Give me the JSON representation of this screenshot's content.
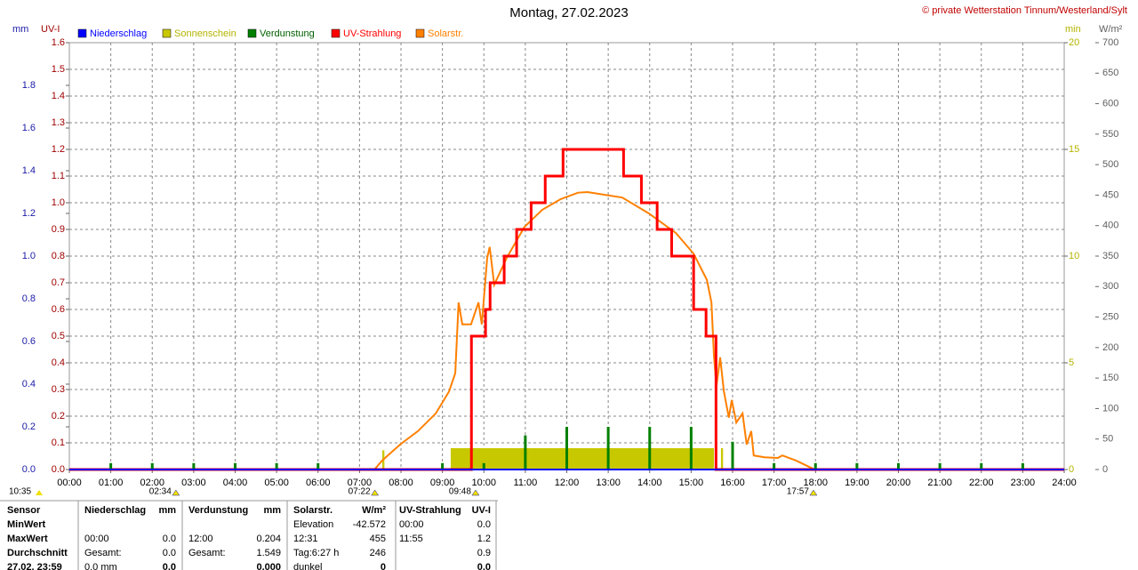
{
  "chart_data": {
    "type": "line",
    "title": "Montag, 27.02.2023",
    "source": "© private Wetterstation Tinnum/Westerland/Sylt",
    "corner_note": "10:35",
    "xlim": [
      0,
      24
    ],
    "xticks": [
      {
        "value": 0,
        "label": "00:00"
      },
      {
        "value": 1,
        "label": "01:00"
      },
      {
        "value": 2,
        "label": "02:00"
      },
      {
        "value": 3,
        "label": "03:00"
      },
      {
        "value": 4,
        "label": "04:00"
      },
      {
        "value": 5,
        "label": "05:00"
      },
      {
        "value": 6,
        "label": "06:00"
      },
      {
        "value": 7,
        "label": "07:00"
      },
      {
        "value": 8,
        "label": "08:00"
      },
      {
        "value": 9,
        "label": "09:00"
      },
      {
        "value": 10,
        "label": "10:00"
      },
      {
        "value": 11,
        "label": "11:00"
      },
      {
        "value": 12,
        "label": "12:00"
      },
      {
        "value": 13,
        "label": "13:00"
      },
      {
        "value": 14,
        "label": "14:00"
      },
      {
        "value": 15,
        "label": "15:00"
      },
      {
        "value": 16,
        "label": "16:00"
      },
      {
        "value": 17,
        "label": "17:00"
      },
      {
        "value": 18,
        "label": "18:00"
      },
      {
        "value": 19,
        "label": "19:00"
      },
      {
        "value": 20,
        "label": "20:00"
      },
      {
        "value": 21,
        "label": "21:00"
      },
      {
        "value": 22,
        "label": "22:00"
      },
      {
        "value": 23,
        "label": "23:00"
      },
      {
        "value": 24,
        "label": "24:00"
      }
    ],
    "grid": true,
    "axes": [
      {
        "label": "mm",
        "color": "#1a1aa6",
        "lim": [
          0,
          2.0
        ],
        "ticks": [
          {
            "value": 0,
            "label": "0.0"
          },
          0.2,
          0.4,
          0.6,
          0.8,
          {
            "value": 1,
            "label": "1.0"
          },
          1.2,
          1.4,
          1.6,
          1.8
        ]
      },
      {
        "label": "UV-I",
        "color": "#a00000",
        "lim": [
          0,
          1.6
        ],
        "ticks": [
          {
            "value": 0,
            "label": "0.0"
          },
          0.1,
          0.2,
          0.3,
          0.4,
          0.5,
          0.6,
          0.7,
          0.8,
          0.9,
          {
            "value": 1,
            "label": "1.0"
          },
          1.1,
          1.2,
          1.3,
          1.4,
          1.5,
          1.6
        ]
      },
      {
        "label": "min",
        "color": "#b4b400",
        "lim": [
          0,
          20
        ],
        "ticks": [
          0,
          5,
          10,
          15,
          20
        ]
      },
      {
        "label": "W/m²",
        "color": "#606060",
        "lim": [
          0,
          700
        ],
        "ticks": [
          0,
          50,
          100,
          150,
          200,
          250,
          300,
          350,
          400,
          450,
          500,
          550,
          600,
          650,
          700
        ]
      }
    ],
    "series": [
      {
        "name": "Niederschlag",
        "color": "#0000ff",
        "axis": 0,
        "type": "line",
        "x": [
          0,
          24
        ],
        "values": [
          0,
          0
        ]
      },
      {
        "name": "Sonnenschein",
        "color": "#c8c800",
        "axis": 2,
        "type": "bar",
        "x": [
          7.55,
          9.2,
          15.72
        ],
        "x_end": [
          7.6,
          15.55,
          15.77
        ],
        "values": [
          0.9,
          1.0,
          1.0
        ]
      },
      {
        "name": "Verdunstung",
        "color": "#008000",
        "axis": 0,
        "type": "spike",
        "x": [
          1,
          2,
          3,
          4,
          5,
          6,
          9,
          10,
          11,
          12,
          13,
          14,
          15,
          16,
          17,
          18,
          19,
          20,
          21,
          22,
          23
        ],
        "values": [
          0.03,
          0.03,
          0.03,
          0.03,
          0.03,
          0.03,
          0.03,
          0.03,
          0.16,
          0.2,
          0.2,
          0.2,
          0.2,
          0.13,
          0.03,
          0.03,
          0.03,
          0.03,
          0.03,
          0.03,
          0.03
        ]
      },
      {
        "name": "UV-Strahlung",
        "color": "#ff0000",
        "axis": 1,
        "type": "line",
        "x": [
          0,
          9.7,
          9.7,
          10.04,
          10.04,
          10.15,
          10.15,
          10.49,
          10.49,
          10.79,
          10.79,
          11.14,
          11.14,
          11.48,
          11.48,
          11.91,
          11.91,
          13.37,
          13.37,
          13.8,
          13.8,
          14.18,
          14.18,
          14.53,
          14.53,
          15.06,
          15.06,
          15.36,
          15.36,
          15.6,
          15.6,
          24
        ],
        "values": [
          0,
          0,
          0.5,
          0.5,
          0.6,
          0.6,
          0.7,
          0.7,
          0.8,
          0.8,
          0.9,
          0.9,
          1.0,
          1.0,
          1.1,
          1.1,
          1.2,
          1.2,
          1.1,
          1.1,
          1.0,
          1.0,
          0.9,
          0.9,
          0.8,
          0.8,
          0.6,
          0.6,
          0.5,
          0.5,
          0,
          0
        ]
      },
      {
        "name": "Solarstr.",
        "color": "#ff8000",
        "axis": 3,
        "type": "line",
        "x": [
          7.36,
          7.55,
          7.98,
          8.41,
          8.84,
          9.16,
          9.31,
          9.39,
          9.48,
          9.69,
          9.87,
          9.95,
          10.08,
          10.14,
          10.25,
          10.55,
          10.98,
          11.41,
          11.84,
          12.27,
          12.5,
          13.34,
          13.98,
          14.63,
          15.06,
          15.38,
          15.49,
          15.55,
          15.61,
          15.7,
          15.79,
          15.91,
          15.98,
          16.09,
          16.24,
          16.34,
          16.45,
          16.51,
          16.77,
          17.09,
          17.2,
          17.52,
          17.95
        ],
        "values": [
          0,
          15,
          41,
          63,
          92,
          128,
          158,
          274,
          238,
          238,
          274,
          238,
          347,
          365,
          303,
          347,
          398,
          426,
          443,
          454,
          455,
          446,
          420,
          388,
          354,
          311,
          274,
          187,
          136,
          184,
          128,
          85,
          114,
          77,
          92,
          41,
          63,
          23,
          20,
          19,
          23,
          15,
          1
        ]
      }
    ],
    "annotations": [
      {
        "label": "02:34",
        "x": 2.57
      },
      {
        "label": "07:22",
        "x": 7.37
      },
      {
        "label": "09:48",
        "x": 9.8
      },
      {
        "label": "17:57",
        "x": 17.95
      }
    ]
  },
  "table": {
    "header": [
      "Sensor",
      "Niederschlag",
      "mm",
      "Verdunstung",
      "mm",
      "Solarstr.",
      "W/m²",
      "UV-Strahlung",
      "UV-I"
    ],
    "rows": [
      [
        "MinWert",
        null,
        null,
        null,
        null,
        "Elevation",
        "-42.572",
        "00:00",
        "0.0"
      ],
      [
        "MaxWert",
        "00:00",
        "0.0",
        "12:00",
        "0.204",
        "12:31",
        "455",
        "11:55",
        "1.2"
      ],
      [
        "Durchschnitt",
        "Gesamt:",
        "0.0",
        "Gesamt:",
        "1.549",
        "Tag:6:27 h",
        "246",
        null,
        "0.9"
      ],
      [
        "27.02. 23:59",
        "0.0 mm",
        "0.0",
        null,
        "0.000",
        "dunkel",
        "0",
        null,
        "0.0"
      ]
    ]
  }
}
